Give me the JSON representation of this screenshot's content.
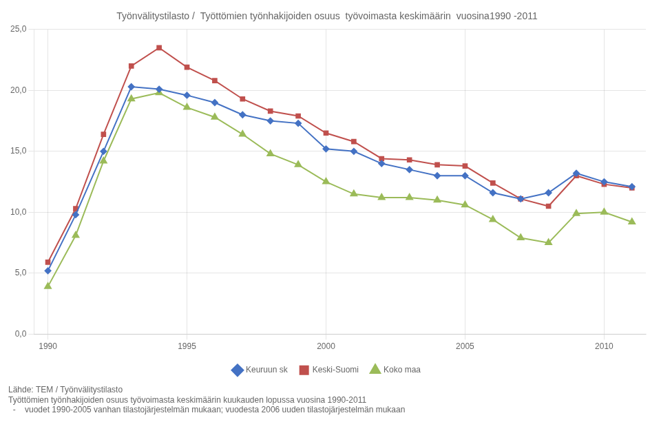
{
  "chart_data": {
    "type": "line",
    "title": "Työnvälitystilasto /  Työttömien työnhakijoiden osuus  työvoimasta keskimäärin  vuosina1990 -2011",
    "x": [
      1990,
      1991,
      1992,
      1993,
      1994,
      1995,
      1996,
      1997,
      1998,
      1999,
      2000,
      2001,
      2002,
      2003,
      2004,
      2005,
      2006,
      2007,
      2008,
      2009,
      2010,
      2011
    ],
    "series": [
      {
        "name": "Keuruun sk",
        "color": "#4472C4",
        "marker": "diamond",
        "values": [
          5.2,
          9.8,
          15.0,
          20.3,
          20.1,
          19.6,
          19.0,
          18.0,
          17.5,
          17.3,
          15.2,
          15.0,
          14.0,
          13.5,
          13.0,
          13.0,
          11.6,
          11.1,
          11.6,
          13.2,
          12.5,
          12.1
        ]
      },
      {
        "name": "Keski-Suomi",
        "color": "#C0504D",
        "marker": "square",
        "values": [
          5.9,
          10.3,
          16.4,
          22.0,
          23.5,
          21.9,
          20.8,
          19.3,
          18.3,
          17.9,
          16.5,
          15.8,
          14.4,
          14.3,
          13.9,
          13.8,
          12.4,
          11.1,
          10.5,
          13.0,
          12.3,
          12.0
        ]
      },
      {
        "name": "Koko maa",
        "color": "#9BBB59",
        "marker": "triangle",
        "values": [
          3.9,
          8.1,
          14.2,
          19.3,
          19.8,
          18.6,
          17.8,
          16.4,
          14.8,
          13.9,
          12.5,
          11.5,
          11.2,
          11.2,
          11.0,
          10.6,
          9.4,
          7.9,
          7.5,
          9.9,
          10.0,
          9.2
        ]
      }
    ],
    "xlim": [
      1989.5,
      2011.5
    ],
    "xticks": [
      1990,
      1995,
      2000,
      2005,
      2010
    ],
    "ylim": [
      0,
      25
    ],
    "yticks": [
      {
        "value": 0.0,
        "label": "0,0"
      },
      {
        "value": 5.0,
        "label": "5,0"
      },
      {
        "value": 10.0,
        "label": "10,0"
      },
      {
        "value": 15.0,
        "label": "15,0"
      },
      {
        "value": 20.0,
        "label": "20,0"
      },
      {
        "value": 25.0,
        "label": "25,0"
      }
    ],
    "grid": true,
    "legend": "bottom",
    "annotations": [
      "Lähde: TEM / Työnvälitystilasto",
      "Työttömien työnhakijoiden osuus työvoimasta keskimäärin kuukauden lopussa vuosina 1990-2011",
      "  -    vuodet 1990-2005 vanhan tilastojärjestelmän mukaan; vuodesta 2006 uuden tilastojärjestelmän mukaan"
    ]
  }
}
